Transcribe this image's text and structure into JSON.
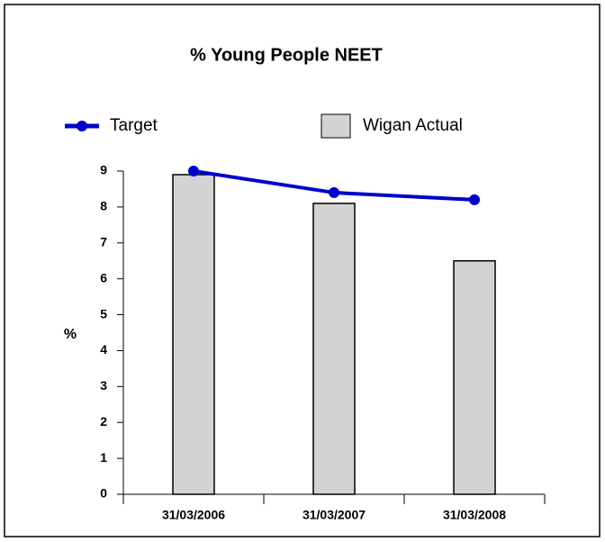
{
  "chart_data": {
    "type": "bar",
    "title": "% Young People NEET",
    "ylabel": "%",
    "categories": [
      "31/03/2006",
      "31/03/2007",
      "31/03/2008"
    ],
    "series": [
      {
        "name": "Target",
        "type": "line",
        "color": "#0000cc",
        "values": [
          9.0,
          8.4,
          8.2
        ]
      },
      {
        "name": "Wigan Actual",
        "type": "bar",
        "color": "#d3d3d3",
        "values": [
          8.9,
          8.1,
          6.5
        ]
      }
    ],
    "ylim": [
      0,
      9
    ],
    "yticks": [
      0,
      1,
      2,
      3,
      4,
      5,
      6,
      7,
      8,
      9
    ]
  }
}
